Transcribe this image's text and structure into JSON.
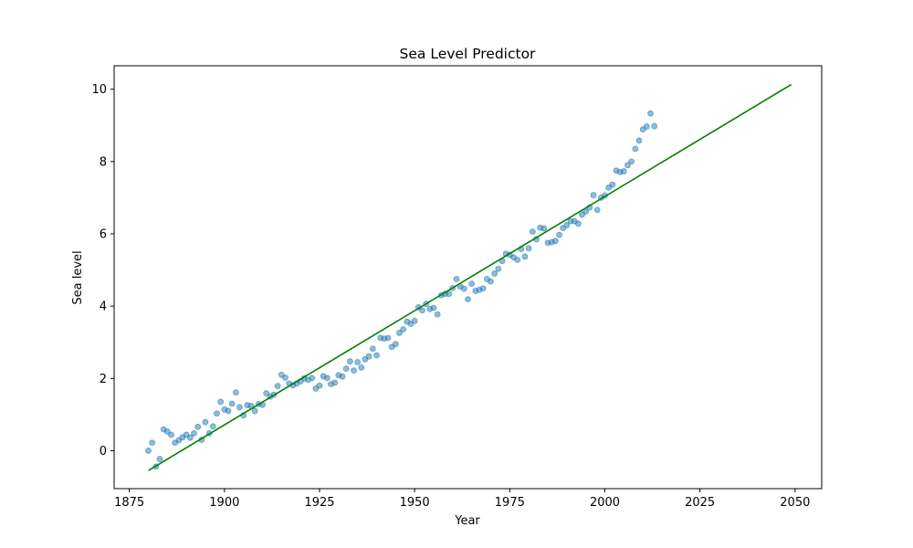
{
  "chart_data": {
    "type": "scatter",
    "title": "Sea Level Predictor",
    "xlabel": "Year",
    "ylabel": "Sea level",
    "xlim": [
      1871,
      2057
    ],
    "ylim": [
      -1.05,
      10.65
    ],
    "xticks": [
      1875,
      1900,
      1925,
      1950,
      1975,
      2000,
      2025,
      2050
    ],
    "yticks": [
      0,
      2,
      4,
      6,
      8,
      10
    ],
    "grid": false,
    "legend": "none",
    "colors": {
      "points": "#1f77b4",
      "trend": "#008000",
      "axes": "#000000"
    },
    "series": [
      {
        "kind": "scatter",
        "x": [
          1880,
          1881,
          1882,
          1883,
          1884,
          1885,
          1886,
          1887,
          1888,
          1889,
          1890,
          1891,
          1892,
          1893,
          1894,
          1895,
          1896,
          1897,
          1898,
          1899,
          1900,
          1901,
          1902,
          1903,
          1904,
          1905,
          1906,
          1907,
          1908,
          1909,
          1910,
          1911,
          1912,
          1913,
          1914,
          1915,
          1916,
          1917,
          1918,
          1919,
          1920,
          1921,
          1922,
          1923,
          1924,
          1925,
          1926,
          1927,
          1928,
          1929,
          1930,
          1931,
          1932,
          1933,
          1934,
          1935,
          1936,
          1937,
          1938,
          1939,
          1940,
          1941,
          1942,
          1943,
          1944,
          1945,
          1946,
          1947,
          1948,
          1949,
          1950,
          1951,
          1952,
          1953,
          1954,
          1955,
          1956,
          1957,
          1958,
          1959,
          1960,
          1961,
          1962,
          1963,
          1964,
          1965,
          1966,
          1967,
          1968,
          1969,
          1970,
          1971,
          1972,
          1973,
          1974,
          1975,
          1976,
          1977,
          1978,
          1979,
          1980,
          1981,
          1982,
          1983,
          1984,
          1985,
          1986,
          1987,
          1988,
          1989,
          1990,
          1991,
          1992,
          1993,
          1994,
          1995,
          1996,
          1997,
          1998,
          1999,
          2000,
          2001,
          2002,
          2003,
          2004,
          2005,
          2006,
          2007,
          2008,
          2009,
          2010,
          2011,
          2012,
          2013
        ],
        "y": [
          0.0,
          0.22,
          -0.44,
          -0.23,
          0.59,
          0.53,
          0.44,
          0.22,
          0.29,
          0.37,
          0.44,
          0.36,
          0.48,
          0.66,
          0.3,
          0.79,
          0.48,
          0.67,
          1.03,
          1.35,
          1.14,
          1.1,
          1.3,
          1.61,
          1.2,
          0.98,
          1.26,
          1.24,
          1.1,
          1.29,
          1.27,
          1.59,
          1.5,
          1.55,
          1.79,
          2.1,
          2.02,
          1.86,
          1.81,
          1.86,
          1.92,
          2.0,
          1.96,
          2.01,
          1.72,
          1.8,
          2.06,
          2.01,
          1.84,
          1.88,
          2.09,
          2.05,
          2.27,
          2.47,
          2.22,
          2.45,
          2.3,
          2.53,
          2.61,
          2.82,
          2.64,
          3.12,
          3.1,
          3.12,
          2.87,
          2.95,
          3.26,
          3.36,
          3.57,
          3.51,
          3.59,
          3.97,
          3.88,
          4.06,
          3.92,
          3.95,
          3.77,
          4.3,
          4.34,
          4.34,
          4.5,
          4.75,
          4.54,
          4.48,
          4.19,
          4.62,
          4.42,
          4.45,
          4.49,
          4.75,
          4.68,
          4.9,
          5.03,
          5.25,
          5.45,
          5.42,
          5.35,
          5.28,
          5.58,
          5.37,
          5.6,
          6.06,
          5.85,
          6.17,
          6.15,
          5.75,
          5.77,
          5.8,
          5.97,
          6.16,
          6.24,
          6.35,
          6.35,
          6.28,
          6.53,
          6.62,
          6.73,
          7.07,
          6.66,
          7.0,
          7.06,
          7.28,
          7.36,
          7.75,
          7.71,
          7.73,
          7.9,
          8.0,
          8.35,
          8.58,
          8.89,
          8.97,
          9.33,
          8.98
        ]
      },
      {
        "kind": "line",
        "x": [
          1880,
          2049
        ],
        "y": [
          -0.55,
          10.13
        ]
      }
    ]
  }
}
